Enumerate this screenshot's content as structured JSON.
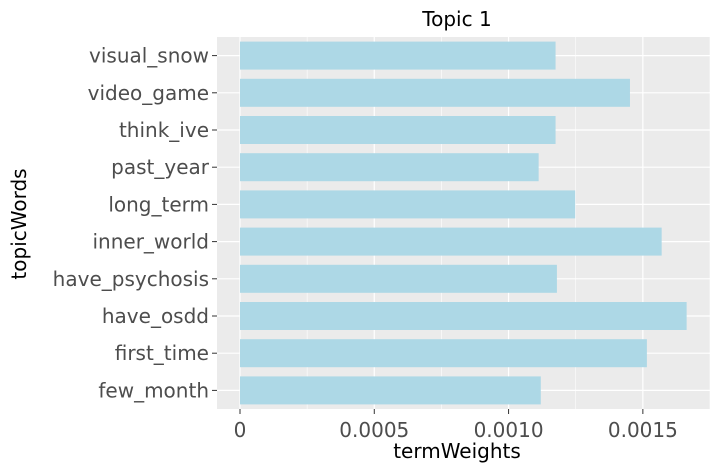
{
  "chart_data": {
    "type": "bar",
    "orientation": "horizontal",
    "title": "Topic 1",
    "xlabel": "termWeights",
    "ylabel": "topicWords",
    "categories": [
      "visual_snow",
      "video_game",
      "think_ive",
      "past_year",
      "long_term",
      "inner_world",
      "have_psychosis",
      "have_osdd",
      "first_time",
      "few_month"
    ],
    "values": [
      0.001175,
      0.001452,
      0.001175,
      0.001112,
      0.001248,
      0.00157,
      0.00118,
      0.001663,
      0.001515,
      0.00112
    ],
    "xlim": [
      -8.56e-05,
      0.00175
    ],
    "x_ticks": [
      0,
      0.0005,
      0.001,
      0.0015
    ],
    "x_tick_labels": [
      "0",
      "0.0005",
      "0.0010",
      "0.0015"
    ],
    "grid": true,
    "colors": {
      "bar": "#add8e6",
      "panel_background": "#ebebeb",
      "grid_major": "#ffffff",
      "text": "#4d4d4d",
      "title": "#000000"
    }
  }
}
